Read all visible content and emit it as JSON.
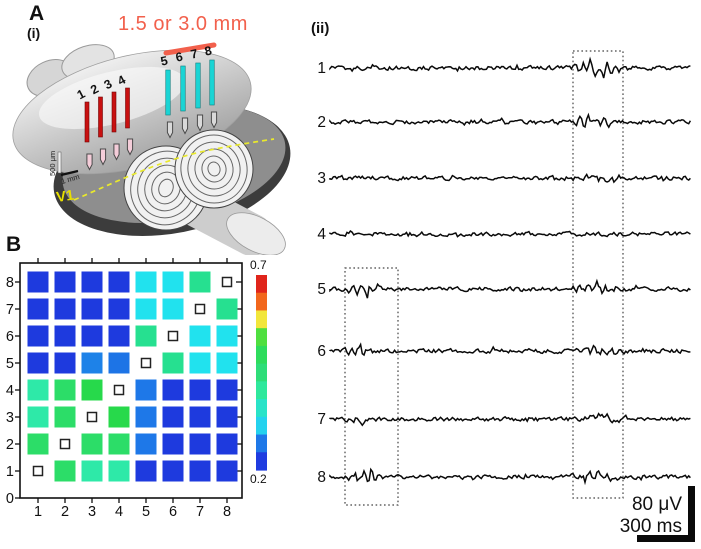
{
  "panels": {
    "a_label": "A",
    "i_label": "(i)",
    "ii_label": "(ii)",
    "b_label": "B"
  },
  "brain": {
    "distance_annotation": "1.5 or 3.0 mm",
    "annotation_color": "#f2604c",
    "v1_label": "V1",
    "v1_color": "#e8df00",
    "depth_scale_label": "500 μm",
    "width_scale_label": "1 mm",
    "red_electrode_labels": [
      "1",
      "2",
      "3",
      "4"
    ],
    "cyan_electrode_labels": [
      "5",
      "6",
      "7",
      "8"
    ],
    "red_electrode_color": "#c81010",
    "cyan_electrode_color": "#1ad4d4"
  },
  "traces": {
    "labels": [
      "1",
      "2",
      "3",
      "4",
      "5",
      "6",
      "7",
      "8"
    ],
    "scalebar_voltage_label": "80 μV",
    "scalebar_time_label": "300 ms"
  },
  "chart_data": {
    "type": "heatmap",
    "title": "",
    "xlabel": "",
    "ylabel": "",
    "x_tick_labels": [
      "1",
      "2",
      "3",
      "4",
      "5",
      "6",
      "7",
      "8"
    ],
    "y_tick_labels": [
      "8",
      "7",
      "6",
      "5",
      "4",
      "3",
      "2",
      "1",
      "0"
    ],
    "rows_top_to_bottom": [
      8,
      7,
      6,
      5,
      4,
      3,
      2,
      1
    ],
    "diagonal_marker": "small-open-square",
    "colorbar": {
      "min": 0.2,
      "max": 0.7,
      "max_label": "0.7",
      "min_label": "0.2",
      "band_colors_top_to_bottom": [
        "#e0251b",
        "#f2671c",
        "#f2e63b",
        "#4fdf3f",
        "#2edc5c",
        "#2edd78",
        "#2ee89c",
        "#29e3c8",
        "#24d2ee",
        "#1e78e8",
        "#1f3ce0"
      ]
    },
    "matrix_colors": [
      [
        "#1e3ade",
        "#1e3ade",
        "#1e3ade",
        "#1e3ade",
        "#21e2ee",
        "#21e2ee",
        "#26e090",
        null
      ],
      [
        "#1e3ade",
        "#1e3ade",
        "#1e3ade",
        "#1e3ade",
        "#21e2ee",
        "#21e2ee",
        null,
        "#26e090"
      ],
      [
        "#1e3ade",
        "#1e3ade",
        "#1e3ade",
        "#1e3ade",
        "#26e090",
        null,
        "#21e2ee",
        "#21e2ee"
      ],
      [
        "#1e3ade",
        "#1e3ade",
        "#1e82e8",
        "#1d74e6",
        null,
        "#26e090",
        "#21e2ee",
        "#21e2ee"
      ],
      [
        "#2ee9a8",
        "#2cdd68",
        "#27d94b",
        null,
        "#1e78e8",
        "#1e3ade",
        "#1e3ade",
        "#1e3ade"
      ],
      [
        "#2ee9a8",
        "#2cdd68",
        null,
        "#27d94b",
        "#1e78e8",
        "#1e3ade",
        "#1e3ade",
        "#1e3ade"
      ],
      [
        "#2cdd68",
        null,
        "#2cdd68",
        "#2cdd68",
        "#1e78e8",
        "#1e3ade",
        "#1e3ade",
        "#1e3ade"
      ],
      [
        null,
        "#2cdd68",
        "#2ee9a8",
        "#2ee9a8",
        "#1e3ade",
        "#1e3ade",
        "#1e3ade",
        "#1e3ade"
      ]
    ],
    "matrix_values": [
      [
        0.24,
        0.24,
        0.24,
        0.24,
        0.38,
        0.38,
        0.44,
        null
      ],
      [
        0.24,
        0.24,
        0.24,
        0.24,
        0.38,
        0.38,
        null,
        0.44
      ],
      [
        0.24,
        0.24,
        0.24,
        0.24,
        0.44,
        null,
        0.38,
        0.38
      ],
      [
        0.24,
        0.24,
        0.3,
        0.3,
        null,
        0.44,
        0.38,
        0.38
      ],
      [
        0.42,
        0.45,
        0.48,
        null,
        0.3,
        0.24,
        0.24,
        0.24
      ],
      [
        0.42,
        0.45,
        null,
        0.48,
        0.3,
        0.24,
        0.24,
        0.24
      ],
      [
        0.45,
        null,
        0.45,
        0.45,
        0.3,
        0.24,
        0.24,
        0.24
      ],
      [
        null,
        0.45,
        0.42,
        0.42,
        0.24,
        0.24,
        0.24,
        0.24
      ]
    ]
  }
}
